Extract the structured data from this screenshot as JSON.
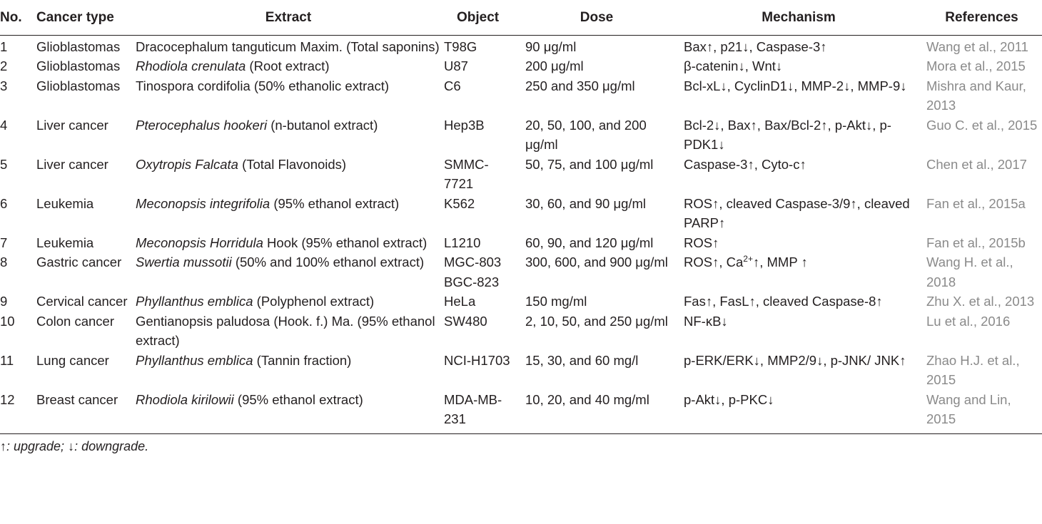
{
  "table": {
    "headers": [
      "No.",
      "Cancer type",
      "Extract",
      "Object",
      "Dose",
      "Mechanism",
      "References"
    ],
    "rows": [
      {
        "no": "1",
        "type": "Glioblastomas",
        "extract_italic": "",
        "extract_rest": "Dracocephalum tanguticum Maxim. (Total saponins)",
        "object": "T98G",
        "dose": "90 μg/ml",
        "mechanism": "Bax↑, p21↓, Caspase-3↑",
        "ref": "Wang et al., 2011"
      },
      {
        "no": "2",
        "type": "Glioblastomas",
        "extract_italic": "Rhodiola crenulata",
        "extract_rest": " (Root extract)",
        "object": "U87",
        "dose": "200 μg/ml",
        "mechanism": "β-catenin↓, Wnt↓",
        "ref": "Mora et al., 2015"
      },
      {
        "no": "3",
        "type": "Glioblastomas",
        "extract_italic": "",
        "extract_rest": "Tinospora cordifolia (50% ethanolic extract)",
        "object": "C6",
        "dose": "250 and 350 μg/ml",
        "mechanism": "Bcl-xL↓, CyclinD1↓, MMP-2↓, MMP-9↓",
        "ref": "Mishra and Kaur, 2013"
      },
      {
        "no": "4",
        "type": "Liver cancer",
        "extract_italic": "Pterocephalus hookeri",
        "extract_rest": " (n-butanol extract)",
        "object": "Hep3B",
        "dose": "20, 50, 100, and 200 μg/ml",
        "mechanism": "Bcl-2↓, Bax↑, Bax/Bcl-2↑, p-Akt↓, p-PDK1↓",
        "ref": "Guo C. et al., 2015"
      },
      {
        "no": "5",
        "type": "Liver cancer",
        "extract_italic": "Oxytropis Falcata",
        "extract_rest": " (Total Flavonoids)",
        "object": "SMMC-7721",
        "dose": "50, 75, and 100 μg/ml",
        "mechanism": "Caspase-3↑, Cyto-c↑",
        "ref": "Chen et al., 2017"
      },
      {
        "no": "6",
        "type": "Leukemia",
        "extract_italic": "Meconopsis integrifolia",
        "extract_rest": " (95% ethanol extract)",
        "object": "K562",
        "dose": "30, 60, and 90 μg/ml",
        "mechanism": "ROS↑, cleaved Caspase-3/9↑, cleaved PARP↑",
        "ref": "Fan et al., 2015a"
      },
      {
        "no": "7",
        "type": "Leukemia",
        "extract_italic": "Meconopsis Horridula",
        "extract_rest": " Hook (95% ethanol extract)",
        "object": "L1210",
        "dose": "60, 90, and 120 μg/ml",
        "mechanism": "ROS↑",
        "ref": "Fan et al., 2015b"
      },
      {
        "no": "8",
        "type": "Gastric cancer",
        "extract_italic": "Swertia mussotii",
        "extract_rest": " (50% and 100% ethanol extract)",
        "object": "MGC-803 BGC-823",
        "dose": "300, 600, and 900 μg/ml",
        "mechanism_pre": "ROS↑, Ca",
        "mechanism_sup": "2+",
        "mechanism_post": "↑, MMP ↑",
        "ref": "Wang H. et al., 2018"
      },
      {
        "no": "9",
        "type": "Cervical cancer",
        "extract_italic": "Phyllanthus emblica",
        "extract_rest": " (Polyphenol extract)",
        "object": "HeLa",
        "dose": "150 mg/ml",
        "mechanism": "Fas↑, FasL↑, cleaved Caspase-8↑",
        "ref": "Zhu X. et al., 2013"
      },
      {
        "no": "10",
        "type": "Colon cancer",
        "extract_italic": "",
        "extract_rest": "Gentianopsis paludosa (Hook. f.) Ma. (95% ethanol extract)",
        "object": "SW480",
        "dose": "2, 10, 50, and 250 μg/ml",
        "mechanism": "NF-κB↓",
        "ref": "Lu et al., 2016"
      },
      {
        "no": "11",
        "type": "Lung cancer",
        "extract_italic": "Phyllanthus emblica",
        "extract_rest": " (Tannin fraction)",
        "object": "NCI-H1703",
        "dose": "15, 30, and 60 mg/l",
        "mechanism": "p-ERK/ERK↓, MMP2/9↓, p-JNK/ JNK↑",
        "ref": "Zhao H.J. et al., 2015"
      },
      {
        "no": "12",
        "type": "Breast cancer",
        "extract_italic": "Rhodiola kirilowii",
        "extract_rest": " (95% ethanol extract)",
        "object": "MDA-MB-231",
        "dose": "10, 20, and 40 mg/ml",
        "mechanism": "p-Akt↓, p-PKC↓",
        "ref": "Wang and Lin, 2015"
      }
    ]
  },
  "footnote": "↑: upgrade; ↓: downgrade.",
  "colors": {
    "text": "#231f20",
    "reference_text": "#8a8a8a",
    "rule": "#231f20"
  }
}
